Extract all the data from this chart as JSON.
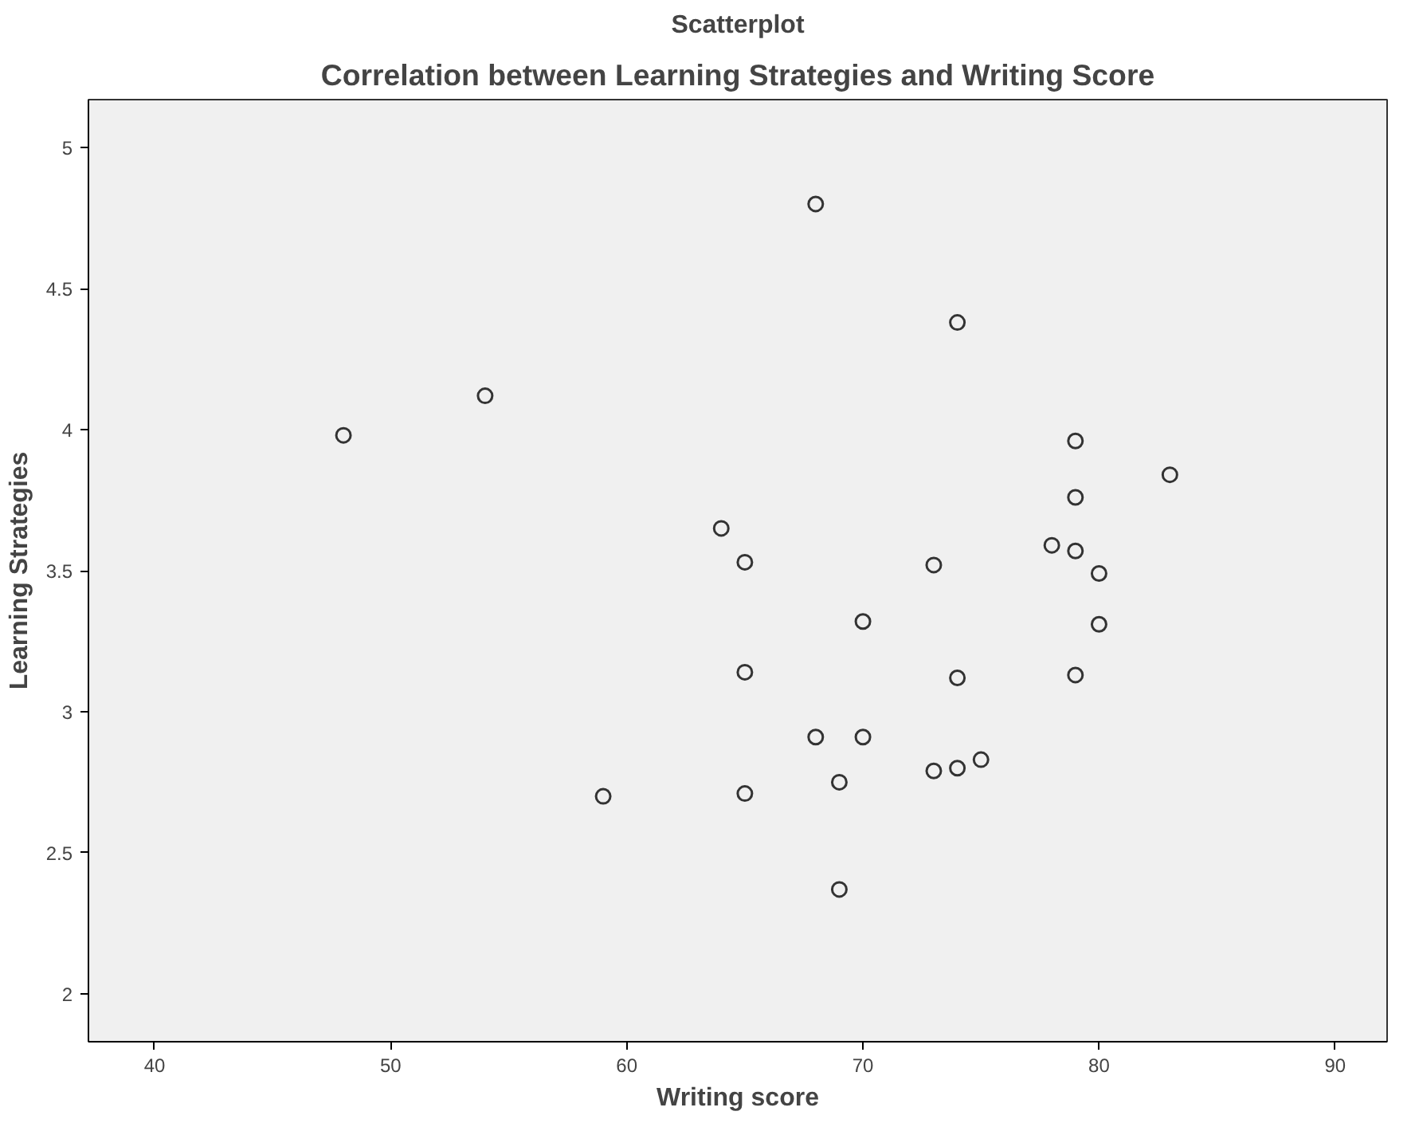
{
  "chart_data": {
    "type": "scatter",
    "title": "Scatterplot",
    "subtitle": "Correlation between Learning Strategies and Writing Score",
    "xlabel": "Writing score",
    "ylabel": "Learning Strategies",
    "x": [
      68,
      54,
      48,
      64,
      65,
      70,
      65,
      68,
      70,
      69,
      59,
      65,
      74,
      79,
      83,
      79,
      78,
      79,
      80,
      73,
      80,
      74,
      79,
      73,
      74,
      75,
      69
    ],
    "series": [
      {
        "color": "#333333",
        "values": [
          4.8,
          4.12,
          3.98,
          3.65,
          3.53,
          3.32,
          3.14,
          2.91,
          2.91,
          2.75,
          2.7,
          2.71,
          4.38,
          3.96,
          3.84,
          3.76,
          3.59,
          3.57,
          3.49,
          3.52,
          3.31,
          3.12,
          3.13,
          2.79,
          2.8,
          2.83,
          2.37
        ]
      }
    ],
    "xlim": [
      37.2,
      92.2
    ],
    "ylim": [
      1.83,
      5.17
    ],
    "xticks": [
      40,
      50,
      60,
      70,
      80,
      90
    ],
    "yticks": [
      2,
      2.5,
      3,
      3.5,
      4,
      4.5,
      5
    ],
    "grid": false,
    "marker": "circle"
  }
}
